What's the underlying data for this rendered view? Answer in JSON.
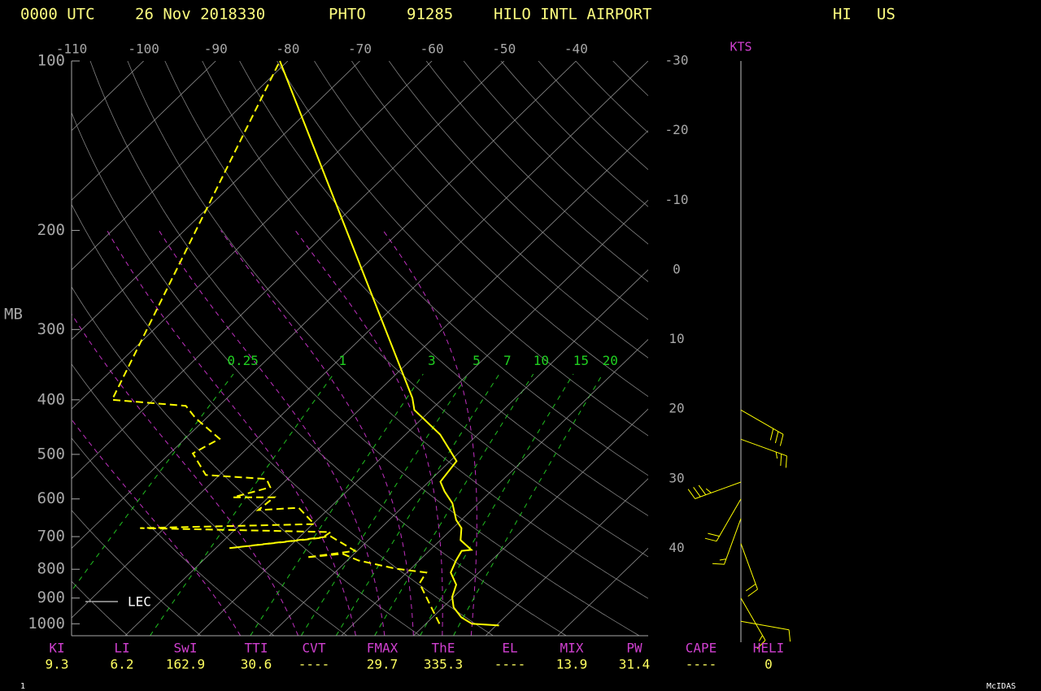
{
  "header": {
    "time": "0000 UTC",
    "date": "26 Nov 2018330",
    "station_id": "PHTO",
    "wmo_id": "91285",
    "station_name": "HILO INTL AIRPORT",
    "state": "HI",
    "country": "US"
  },
  "chart_data": {
    "type": "skewt",
    "ylabel": "MB",
    "ylim": [
      100,
      1050
    ],
    "log_scale": true,
    "yticks": [
      100,
      200,
      300,
      400,
      500,
      600,
      700,
      800,
      900,
      1000
    ],
    "xlim": [
      -110,
      -30
    ],
    "xticks": [
      -110,
      -100,
      -90,
      -80,
      -70,
      -60,
      -50,
      -40
    ],
    "xticks_right": [
      -30,
      -20,
      -10,
      0,
      10,
      20,
      30,
      40
    ],
    "mixing_ratio_lines": [
      0.25,
      1,
      3,
      5,
      7,
      10,
      15,
      20
    ],
    "series": [
      {
        "color": "#ffff00",
        "dashed": false,
        "pressure": [
          1007,
          1000,
          974,
          935,
          896,
          852,
          811,
          772,
          742,
          739,
          710,
          676,
          654,
          611,
          582,
          559,
          514,
          461,
          417,
          397,
          100
        ],
        "values": [
          30.4,
          26.4,
          24.0,
          21.5,
          19.8,
          18.6,
          16.1,
          15.1,
          14.5,
          15.7,
          12.8,
          11.2,
          9.3,
          6.4,
          3.6,
          1.6,
          0.9,
          -5.2,
          -12.3,
          -14.3,
          -81.1
        ]
      },
      {
        "color": "#ffff00",
        "dashed": true,
        "pressure": [
          1000,
          917,
          847,
          811,
          798,
          772,
          751,
          762,
          742,
          699,
          734,
          703,
          687,
          676,
          665,
          622,
          628,
          596,
          596,
          572,
          553,
          544,
          498,
          469,
          431,
          410,
          400,
          100
        ],
        "values": [
          21.9,
          17.4,
          13.3,
          12.7,
          7.9,
          1.6,
          -1.6,
          -6.1,
          -0.3,
          -5.8,
          -18.1,
          -6.7,
          -6.4,
          -33.4,
          -9.8,
          -14.3,
          -19.6,
          -19.2,
          -24.9,
          -21.2,
          -22.9,
          -31.9,
          -36.8,
          -35.2,
          -41.5,
          -44.6,
          -55.7,
          -81.1
        ]
      }
    ],
    "legend_label": "LEC",
    "winds": {
      "unit": "KTS",
      "color": "#ffff00",
      "pressure": [
        417,
        470,
        560,
        600,
        650,
        720,
        900,
        990
      ],
      "direction": [
        120,
        110,
        250,
        210,
        200,
        160,
        150,
        100
      ],
      "speed": [
        30,
        25,
        35,
        20,
        15,
        20,
        15,
        10
      ]
    }
  },
  "indices": [
    {
      "name": "KI",
      "value": 9.3
    },
    {
      "name": "LI",
      "value": 6.2
    },
    {
      "name": "SwI",
      "value": 162.9
    },
    {
      "name": "TTI",
      "value": 30.6
    },
    {
      "name": "CVT",
      "value": "----"
    },
    {
      "name": "FMAX",
      "value": 29.7
    },
    {
      "name": "ThE",
      "value": 335.3
    },
    {
      "name": "EL",
      "value": "----"
    },
    {
      "name": "MIX",
      "value": 13.9
    },
    {
      "name": "PW",
      "value": 31.4
    },
    {
      "name": "CAPE",
      "value": "----"
    },
    {
      "name": "HELI",
      "value": 0
    }
  ],
  "footer": {
    "page": 1,
    "software": "McIDAS"
  }
}
